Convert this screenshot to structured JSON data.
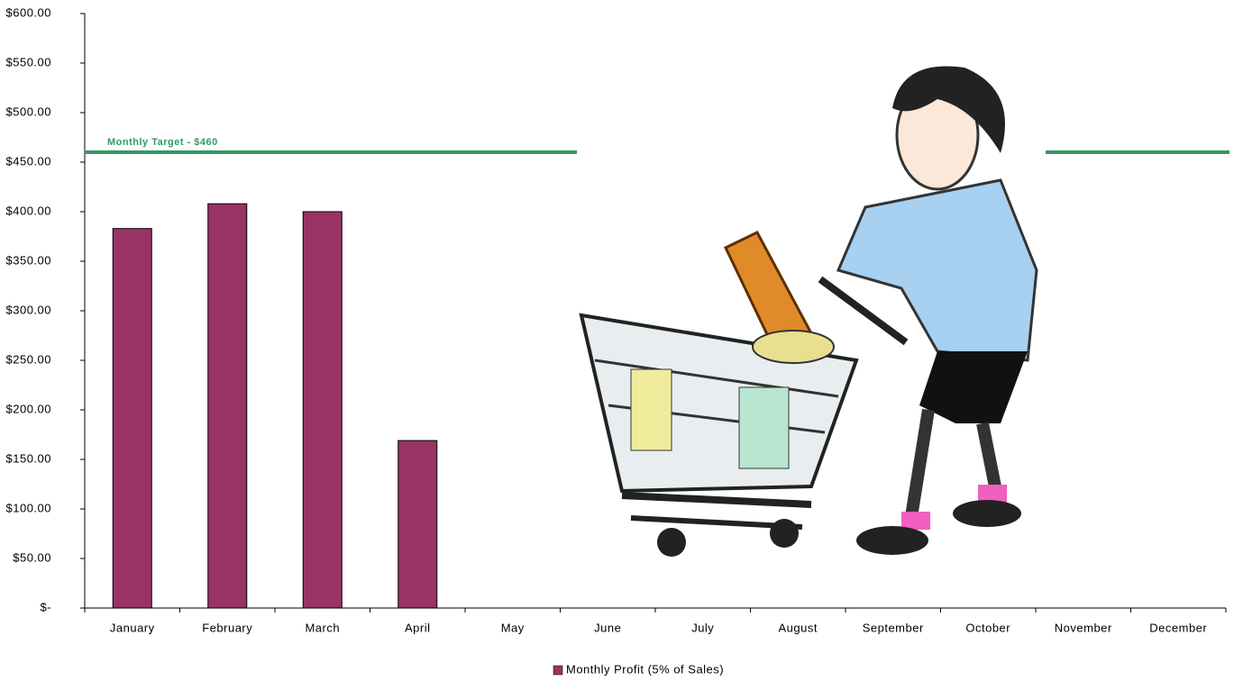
{
  "chart_data": {
    "type": "bar",
    "categories": [
      "January",
      "February",
      "March",
      "April",
      "May",
      "June",
      "July",
      "August",
      "September",
      "October",
      "November",
      "December"
    ],
    "series": [
      {
        "name": "Monthly Profit (5% of Sales)",
        "color": "#993366",
        "values": [
          383,
          408,
          400,
          169,
          null,
          null,
          null,
          null,
          null,
          null,
          null,
          null
        ]
      }
    ],
    "ylim": [
      0,
      600
    ],
    "yticks": [
      {
        "value": 0,
        "label": "$-"
      },
      {
        "value": 50,
        "label": "$50.00"
      },
      {
        "value": 100,
        "label": "$100.00"
      },
      {
        "value": 150,
        "label": "$150.00"
      },
      {
        "value": 200,
        "label": "$200.00"
      },
      {
        "value": 250,
        "label": "$250.00"
      },
      {
        "value": 300,
        "label": "$300.00"
      },
      {
        "value": 350,
        "label": "$350.00"
      },
      {
        "value": 400,
        "label": "$400.00"
      },
      {
        "value": 450,
        "label": "$450.00"
      },
      {
        "value": 500,
        "label": "$500.00"
      },
      {
        "value": 550,
        "label": "$550.00"
      },
      {
        "value": 600,
        "label": "$600.00"
      }
    ],
    "target": {
      "value": 460,
      "label": "Monthly Target - $460",
      "color": "#339966"
    },
    "grid": false
  }
}
